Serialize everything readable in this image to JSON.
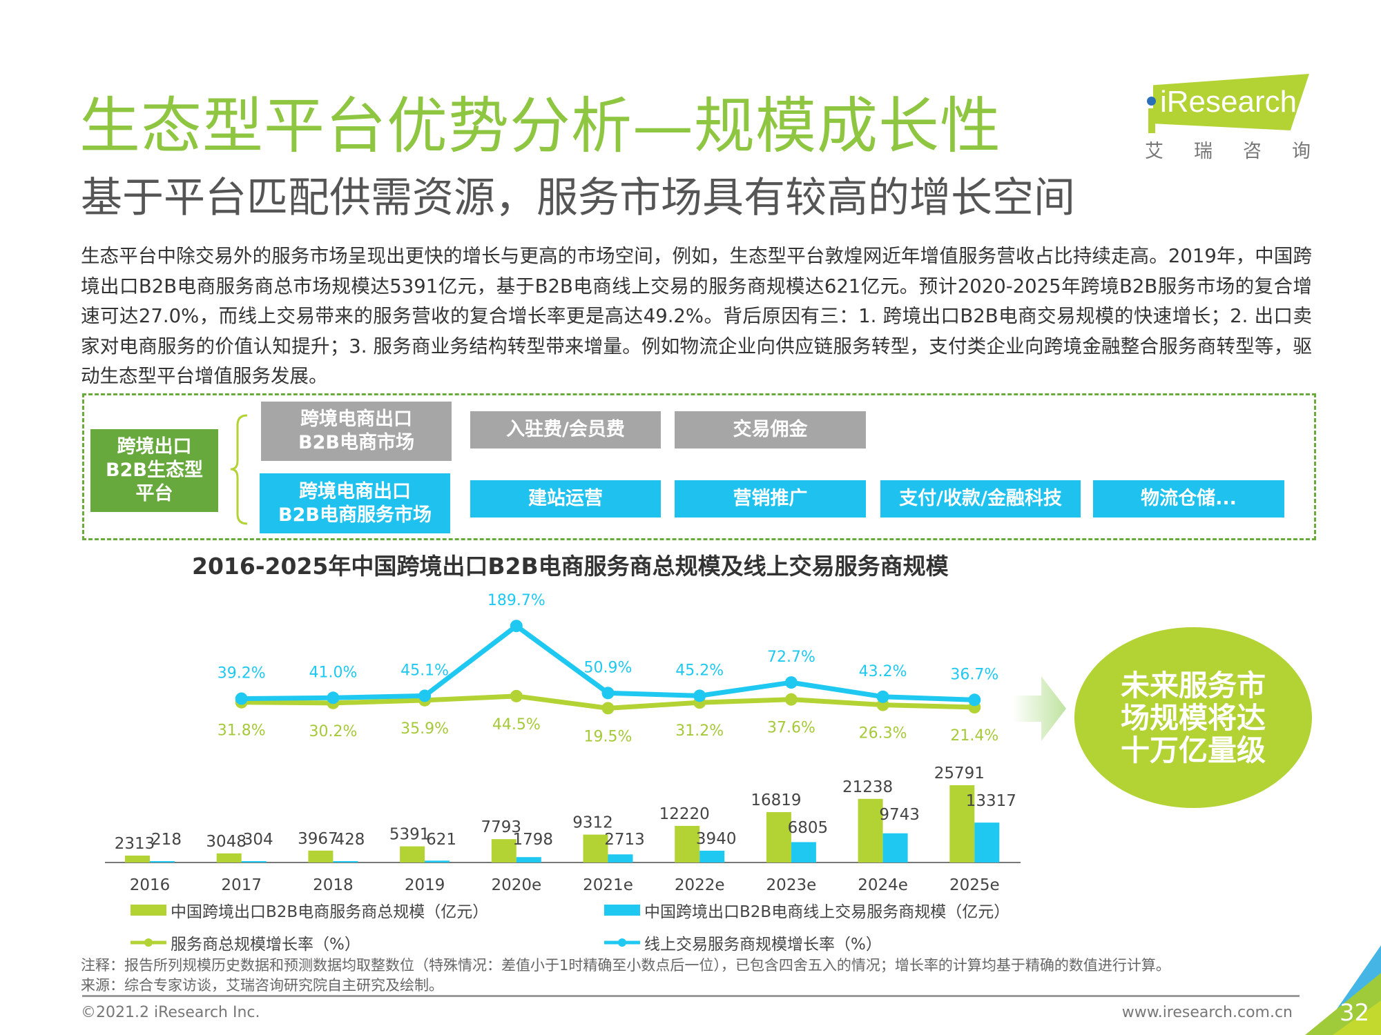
{
  "header": {
    "title": "生态型平台优势分析—规模成长性",
    "subtitle": "基于平台匹配供需资源，服务市场具有较高的增长空间",
    "logo": {
      "text": "iResearch",
      "cn": [
        "艾",
        "瑞",
        "咨",
        "询"
      ]
    }
  },
  "paragraph": "生态平台中除交易外的服务市场呈现出更快的增长与更高的市场空间，例如，生态型平台敦煌网近年增值服务营收占比持续走高。2019年，中国跨境出口B2B电商服务商总市场规模达5391亿元，基于B2B电商线上交易的服务商规模达621亿元。预计2020-2025年跨境B2B服务市场的复合增速可达27.0%，而线上交易带来的服务营收的复合增长率更是高达49.2%。背后原因有三：1. 跨境出口B2B电商交易规模的快速增长；2. 出口卖家对电商服务的价值认知提升；3. 服务商业务结构转型带来增量。例如物流企业向供应链服务转型，支付类企业向跨境金融整合服务商转型等，驱动生态型平台增值服务发展。",
  "diagram": {
    "root": [
      "跨境出口",
      "B2B生态型",
      "平台"
    ],
    "market": [
      "跨境电商出口",
      "B2B电商市场"
    ],
    "service_market": [
      "跨境电商出口",
      "B2B电商服务市场"
    ],
    "market_items": [
      "入驻费/会员费",
      "交易佣金"
    ],
    "service_items": [
      "建站运营",
      "营销推广",
      "支付/收款/金融科技",
      "物流仓储..."
    ]
  },
  "chart_data": {
    "type": "bar+line",
    "title": "2016-2025年中国跨境出口B2B电商服务商总规模及线上交易服务商规模",
    "categories": [
      "2016",
      "2017",
      "2018",
      "2019",
      "2020e",
      "2021e",
      "2022e",
      "2023e",
      "2024e",
      "2025e"
    ],
    "bar_series": [
      {
        "name": "中国跨境出口B2B电商服务商总规模（亿元）",
        "color": "#b3d234",
        "values": [
          2313,
          3048,
          3967,
          5391,
          7793,
          9312,
          12220,
          16819,
          21238,
          25791
        ]
      },
      {
        "name": "中国跨境出口B2B电商线上交易服务商规模（亿元）",
        "color": "#1fc8f0",
        "values": [
          218,
          304,
          428,
          621,
          1798,
          2713,
          3940,
          6805,
          9743,
          13317
        ]
      }
    ],
    "line_series": [
      {
        "name": "服务商总规模增长率（%）",
        "color": "#b3d234",
        "values": [
          null,
          31.8,
          30.2,
          35.9,
          44.5,
          19.5,
          31.2,
          37.6,
          26.3,
          21.4
        ],
        "labels": [
          "",
          "31.8%",
          "30.2%",
          "35.9%",
          "44.5%",
          "19.5%",
          "31.2%",
          "37.6%",
          "26.3%",
          "21.4%"
        ]
      },
      {
        "name": "线上交易服务商规模增长率（%）",
        "color": "#1fc8f0",
        "values": [
          null,
          39.2,
          41.0,
          45.1,
          189.7,
          50.9,
          45.2,
          72.7,
          43.2,
          36.7
        ],
        "labels": [
          "",
          "39.2%",
          "41.0%",
          "45.1%",
          "189.7%",
          "50.9%",
          "45.2%",
          "72.7%",
          "43.2%",
          "36.7%"
        ]
      }
    ],
    "legend": "bottom"
  },
  "callout": [
    "未来服务市",
    "场规模将达",
    "十万亿量级"
  ],
  "notes": {
    "note": "注释：报告所列规模历史数据和预测数据均取整数位（特殊情况：差值小于1时精确至小数点后一位），已包含四舍五入的情况；增长率的计算均基于精确的数值进行计算。",
    "source": "来源：综合专家访谈，艾瑞咨询研究院自主研究及绘制。"
  },
  "footer": {
    "copyright": "©2021.2 iResearch Inc.",
    "url": "www.iresearch.com.cn",
    "page": "32"
  }
}
